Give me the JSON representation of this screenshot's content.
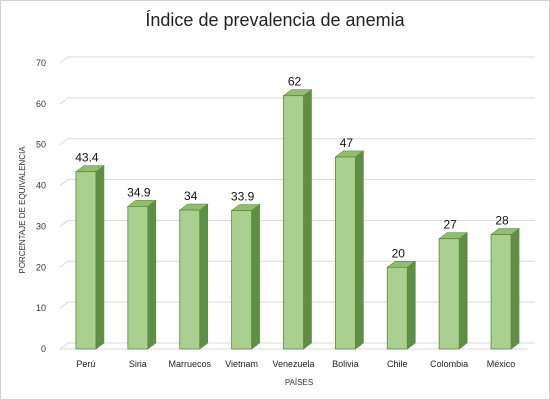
{
  "chart_data": {
    "type": "bar",
    "title": "Índice de prevalencia de anemia",
    "xlabel": "PAÍSES",
    "ylabel": "PORCENTAJE DE EQUIVALENCIA",
    "categories": [
      "Perú",
      "Siria",
      "Marruecos",
      "Vietnam",
      "Venezuela",
      "Bolivia",
      "Chile",
      "Colombia",
      "México"
    ],
    "values": [
      43.4,
      34.9,
      34,
      33.9,
      62,
      47,
      20,
      27,
      28
    ],
    "data_labels": [
      "43.4",
      "34.9",
      "34",
      "33.9",
      "62",
      "47",
      "20",
      "27",
      "28"
    ],
    "ylim": [
      0,
      70
    ],
    "yticks": [
      0,
      10,
      20,
      30,
      40,
      50,
      60,
      70
    ],
    "grid": true,
    "legend": "none"
  },
  "colors": {
    "bar_front": "#a9d08e",
    "bar_side": "#5f8f45",
    "bar_top": "#8fbe6f",
    "bar_stroke": "#5a8a3e",
    "grid": "#d9d9d9"
  }
}
